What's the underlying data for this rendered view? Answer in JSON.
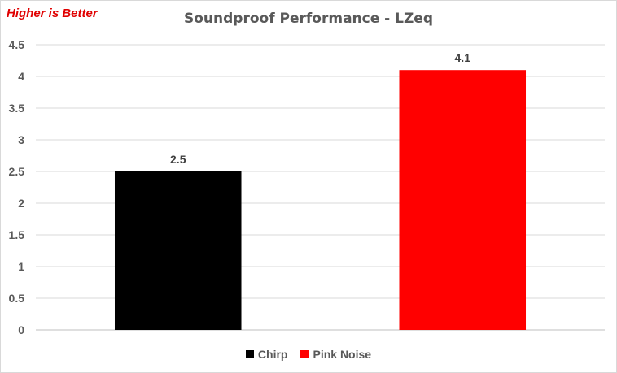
{
  "annotation": "Higher is Better",
  "chart_data": {
    "type": "bar",
    "title": "Soundproof Performance - LZeq",
    "categories": [
      "Chirp",
      "Pink Noise"
    ],
    "values": [
      2.5,
      4.1
    ],
    "colors": [
      "#000000",
      "#ff0000"
    ],
    "xlabel": "",
    "ylabel": "",
    "ylim": [
      0,
      4.5
    ],
    "yticks": [
      "0",
      "0.5",
      "1",
      "1.5",
      "2",
      "2.5",
      "3",
      "3.5",
      "4",
      "4.5"
    ],
    "grid": true,
    "legend_position": "bottom",
    "legend": [
      "Chirp",
      "Pink Noise"
    ]
  }
}
